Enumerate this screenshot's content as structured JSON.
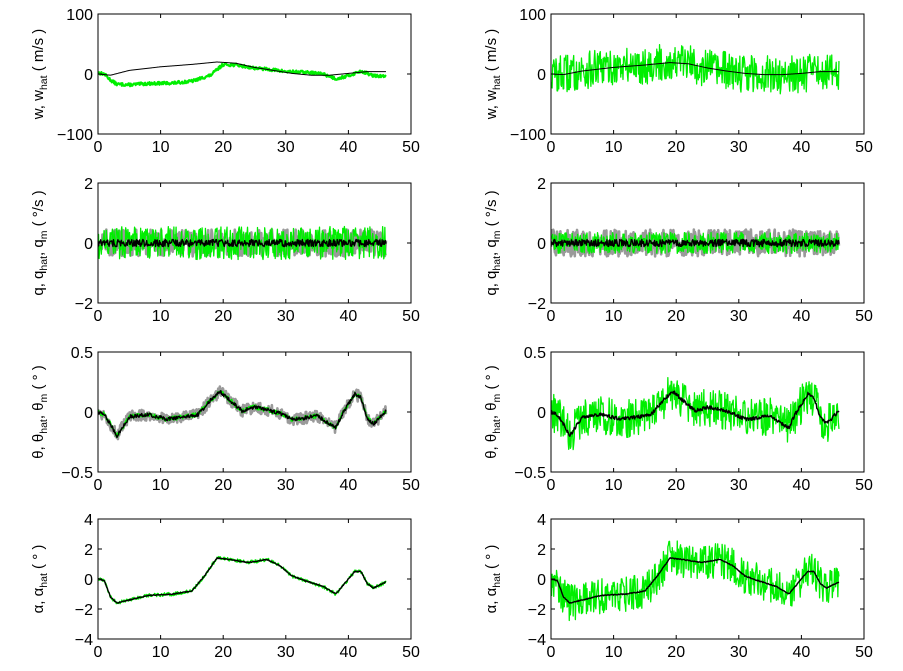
{
  "colors": {
    "estimate": "#00ee00",
    "measurement": "#9a9a9a",
    "truth": "#000000",
    "axes": "#000000"
  },
  "chart_data": [
    {
      "type": "line",
      "row": 1,
      "col": 1,
      "ylabel_parts": [
        "w, w",
        "hat",
        " ( m/s )"
      ],
      "xlim": [
        0,
        50
      ],
      "ylim": [
        -100,
        100
      ],
      "xticks": [
        "0",
        "10",
        "20",
        "30",
        "40",
        "50"
      ],
      "yticks": [
        "100",
        "0",
        "−100"
      ],
      "x_end": 46,
      "truth": {
        "x": [
          0,
          2,
          5,
          10,
          15,
          19,
          22,
          25,
          28,
          31,
          34,
          37,
          40,
          43,
          46
        ],
        "y": [
          0,
          -2,
          6,
          12,
          16,
          20,
          18,
          11,
          6,
          1,
          -2,
          -2,
          1,
          4,
          4
        ]
      },
      "estimate": {
        "x": [
          0,
          1,
          2,
          3,
          5,
          8,
          12,
          15,
          18,
          20,
          22,
          25,
          28,
          30,
          33,
          36,
          38,
          40,
          42,
          44,
          46
        ],
        "y": [
          2,
          0,
          -10,
          -17,
          -18,
          -16,
          -15,
          -12,
          -2,
          16,
          15,
          10,
          7,
          4,
          3,
          0,
          -8,
          -3,
          5,
          -3,
          -4
        ],
        "noise": 2.5
      }
    },
    {
      "type": "line",
      "row": 1,
      "col": 2,
      "ylabel_parts": [
        "w, w",
        "hat",
        " ( m/s )"
      ],
      "xlim": [
        0,
        50
      ],
      "ylim": [
        -100,
        100
      ],
      "xticks": [
        "0",
        "10",
        "20",
        "30",
        "40",
        "50"
      ],
      "yticks": [
        "100",
        "0",
        "−100"
      ],
      "x_end": 46,
      "truth": {
        "x": [
          0,
          2,
          5,
          10,
          15,
          19,
          22,
          25,
          28,
          31,
          34,
          37,
          40,
          43,
          46
        ],
        "y": [
          0,
          -1,
          5,
          11,
          15,
          19,
          17,
          10,
          5,
          1,
          -1,
          -1,
          1,
          4,
          4
        ]
      },
      "estimate_band": {
        "amplitude": 32
      }
    },
    {
      "type": "line",
      "row": 2,
      "col": 1,
      "ylabel_parts": [
        "q, q",
        "hat",
        ", q",
        "m",
        " ( °/s )"
      ],
      "xlim": [
        0,
        50
      ],
      "ylim": [
        -2,
        2
      ],
      "xticks": [
        "0",
        "10",
        "20",
        "30",
        "40",
        "50"
      ],
      "yticks": [
        "2",
        "0",
        "−2"
      ],
      "x_end": 46,
      "truth": {
        "x": [
          0,
          46
        ],
        "y": [
          0,
          0
        ],
        "noise": 0.12
      },
      "measurement_band": {
        "amplitude": 0.45
      },
      "estimate_band": {
        "amplitude": 0.55
      }
    },
    {
      "type": "line",
      "row": 2,
      "col": 2,
      "ylabel_parts": [
        "q, q",
        "hat",
        ", q",
        "m",
        " ( °/s )"
      ],
      "xlim": [
        0,
        50
      ],
      "ylim": [
        -2,
        2
      ],
      "xticks": [
        "0",
        "10",
        "20",
        "30",
        "40",
        "50"
      ],
      "yticks": [
        "2",
        "0",
        "−2"
      ],
      "x_end": 46,
      "truth": {
        "x": [
          0,
          46
        ],
        "y": [
          0,
          0
        ],
        "noise": 0.12
      },
      "measurement_band": {
        "amplitude": 0.45
      },
      "estimate_band": {
        "amplitude": 0.35
      }
    },
    {
      "type": "line",
      "row": 3,
      "col": 1,
      "ylabel_parts": [
        "θ, θ",
        "hat",
        ", θ",
        "m",
        " ( ° )"
      ],
      "xlim": [
        0,
        50
      ],
      "ylim": [
        -0.5,
        0.5
      ],
      "xticks": [
        "0",
        "10",
        "20",
        "30",
        "40",
        "50"
      ],
      "yticks": [
        "0.5",
        "0",
        "−0.5"
      ],
      "x_end": 46,
      "truth": {
        "x": [
          0,
          1,
          2,
          3,
          5,
          8,
          11,
          14,
          16,
          18,
          19.5,
          21,
          23,
          25,
          27,
          29,
          31,
          33,
          35,
          37,
          38,
          39,
          41,
          42,
          43,
          44,
          46
        ],
        "y": [
          0,
          -0.02,
          -0.1,
          -0.2,
          -0.04,
          -0.02,
          -0.06,
          -0.04,
          -0.02,
          0.1,
          0.17,
          0.1,
          0.01,
          0.04,
          0.02,
          -0.01,
          -0.06,
          -0.05,
          -0.03,
          -0.1,
          -0.13,
          -0.02,
          0.15,
          0.12,
          -0.05,
          -0.1,
          0.01
        ],
        "noise": 0.015
      },
      "measurement_band": {
        "amplitude": 0.05
      },
      "estimate_band": {
        "amplitude": 0.02
      }
    },
    {
      "type": "line",
      "row": 3,
      "col": 2,
      "ylabel_parts": [
        "θ, θ",
        "hat",
        ", θ",
        "m",
        " ( ° )"
      ],
      "xlim": [
        0,
        50
      ],
      "ylim": [
        -0.5,
        0.5
      ],
      "xticks": [
        "0",
        "10",
        "20",
        "30",
        "40",
        "50"
      ],
      "yticks": [
        "0.5",
        "0",
        "−0.5"
      ],
      "x_end": 46,
      "truth": {
        "x": [
          0,
          1,
          2,
          3,
          5,
          8,
          11,
          14,
          16,
          18,
          19.5,
          21,
          23,
          25,
          27,
          29,
          31,
          33,
          35,
          37,
          38,
          39,
          41,
          42,
          43,
          44,
          46
        ],
        "y": [
          0,
          -0.02,
          -0.1,
          -0.2,
          -0.04,
          -0.02,
          -0.06,
          -0.04,
          -0.02,
          0.1,
          0.17,
          0.1,
          0.01,
          0.04,
          0.02,
          -0.01,
          -0.06,
          -0.05,
          -0.03,
          -0.1,
          -0.13,
          -0.02,
          0.15,
          0.12,
          -0.05,
          -0.1,
          0.01
        ],
        "noise": 0.015
      },
      "estimate_band": {
        "amplitude": 0.16
      }
    },
    {
      "type": "line",
      "row": 4,
      "col": 1,
      "ylabel_parts": [
        "α, α",
        "hat",
        " ( ° )"
      ],
      "xlim": [
        0,
        50
      ],
      "ylim": [
        -4,
        4
      ],
      "xticks": [
        "0",
        "10",
        "20",
        "30",
        "40",
        "50"
      ],
      "yticks": [
        "4",
        "2",
        "0",
        "−2",
        "−4"
      ],
      "x_end": 46,
      "truth": {
        "x": [
          0,
          1,
          2,
          3,
          5,
          8,
          12,
          15,
          17,
          19,
          21,
          24,
          27,
          29,
          31,
          33,
          36,
          38,
          39,
          41,
          42,
          43,
          44,
          46
        ],
        "y": [
          0,
          -0.1,
          -1.2,
          -1.6,
          -1.4,
          -1.1,
          -1.0,
          -0.8,
          0.2,
          1.4,
          1.3,
          1.1,
          1.3,
          0.9,
          0.2,
          -0.1,
          -0.5,
          -1.0,
          -0.5,
          0.5,
          0.5,
          -0.3,
          -0.6,
          -0.2
        ],
        "noise": 0.03
      },
      "estimate_band": {
        "amplitude": 0.12
      }
    },
    {
      "type": "line",
      "row": 4,
      "col": 2,
      "ylabel_parts": [
        "α, α",
        "hat",
        " ( ° )"
      ],
      "xlim": [
        0,
        50
      ],
      "ylim": [
        -4,
        4
      ],
      "xticks": [
        "0",
        "10",
        "20",
        "30",
        "40",
        "50"
      ],
      "yticks": [
        "4",
        "2",
        "0",
        "−2",
        "−4"
      ],
      "x_end": 46,
      "truth": {
        "x": [
          0,
          1,
          2,
          3,
          5,
          8,
          12,
          15,
          17,
          19,
          21,
          24,
          27,
          29,
          31,
          33,
          36,
          38,
          39,
          41,
          42,
          43,
          44,
          46
        ],
        "y": [
          0,
          -0.1,
          -1.2,
          -1.6,
          -1.4,
          -1.1,
          -1.0,
          -0.8,
          0.2,
          1.4,
          1.3,
          1.1,
          1.3,
          0.9,
          0.2,
          -0.1,
          -0.5,
          -1.0,
          -0.5,
          0.5,
          0.5,
          -0.3,
          -0.6,
          -0.2
        ],
        "noise": 0.03
      },
      "estimate_band": {
        "amplitude": 1.2
      }
    }
  ]
}
